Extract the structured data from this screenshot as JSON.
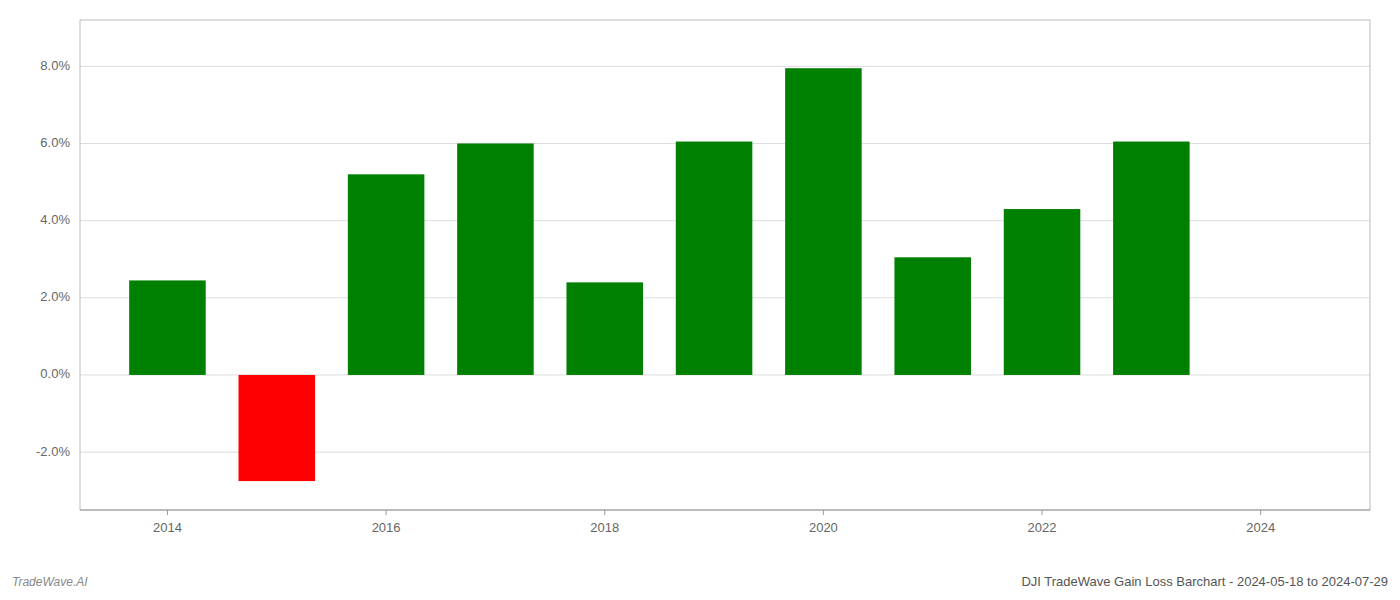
{
  "chart_data": {
    "type": "bar",
    "title": "DJI TradeWave Gain Loss Barchart - 2024-05-18 to 2024-07-29",
    "annotations": [
      "TradeWave.AI"
    ],
    "x": [
      2014,
      2015,
      2016,
      2017,
      2018,
      2019,
      2020,
      2021,
      2022,
      2023,
      2024
    ],
    "values": [
      2.45,
      -2.75,
      5.2,
      6.0,
      2.4,
      6.05,
      7.95,
      3.05,
      4.3,
      6.05,
      null
    ],
    "colors": [
      "#008000",
      "#ff0000",
      "#008000",
      "#008000",
      "#008000",
      "#008000",
      "#008000",
      "#008000",
      "#008000",
      "#008000",
      "#008000"
    ],
    "xlim": [
      2013.2,
      2025.0
    ],
    "xticks": [
      2014,
      2016,
      2018,
      2020,
      2022,
      2024
    ],
    "ylim": [
      -3.5,
      9.2
    ],
    "yticks": [
      {
        "value": -2.0,
        "label": "-2.0%"
      },
      {
        "value": 0.0,
        "label": "0.0%"
      },
      {
        "value": 2.0,
        "label": "2.0%"
      },
      {
        "value": 4.0,
        "label": "4.0%"
      },
      {
        "value": 6.0,
        "label": "6.0%"
      },
      {
        "value": 8.0,
        "label": "8.0%"
      }
    ],
    "grid": true
  }
}
